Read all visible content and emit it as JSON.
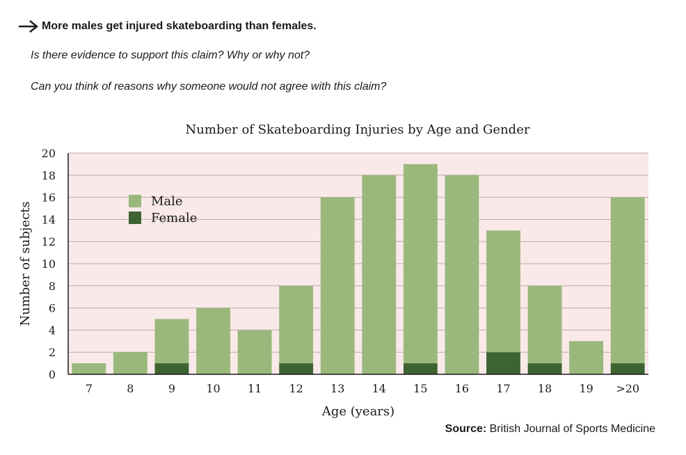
{
  "claim": {
    "icon": "arrow-right-icon",
    "text": "More males get injured skateboarding than females."
  },
  "questions": [
    "Is there evidence to support this claim? Why or why not?",
    "Can you think of reasons why someone would not agree with this claim?"
  ],
  "source": {
    "label": "Source:",
    "text": "British Journal of Sports Medicine"
  },
  "colors": {
    "male": "#9ab87b",
    "female": "#3d6332",
    "plot_background": "#f9e9e8",
    "grid": "#b9aaa8",
    "text": "#1a1a1a"
  },
  "chart_data": {
    "type": "bar",
    "stacked": true,
    "title": "Number of Skateboarding Injuries by Age and Gender",
    "xlabel": "Age (years)",
    "ylabel": "Number of subjects",
    "categories": [
      "7",
      "8",
      "9",
      "10",
      "11",
      "12",
      "13",
      "14",
      "15",
      "16",
      "17",
      "18",
      "19",
      ">20"
    ],
    "series": [
      {
        "name": "Male",
        "values": [
          1,
          2,
          4,
          6,
          4,
          7,
          16,
          18,
          18,
          18,
          11,
          7,
          3,
          15
        ]
      },
      {
        "name": "Female",
        "values": [
          0,
          0,
          1,
          0,
          0,
          1,
          0,
          0,
          1,
          0,
          2,
          1,
          0,
          1
        ]
      }
    ],
    "ylim": [
      0,
      20
    ],
    "yticks": [
      0,
      2,
      4,
      6,
      8,
      10,
      12,
      14,
      16,
      18,
      20
    ],
    "grid": true,
    "legend_position": "top-left"
  }
}
